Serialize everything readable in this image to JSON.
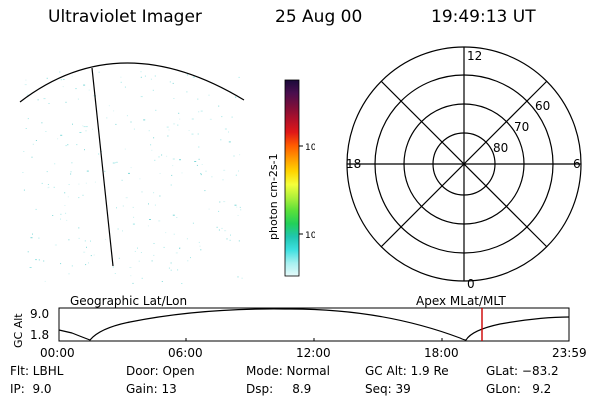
{
  "header": {
    "title": "Ultraviolet Imager",
    "date": "25 Aug 00",
    "time": "19:49:13 UT"
  },
  "colorbar": {
    "label": "photon cm-2s-1",
    "ticks": [
      "100",
      "10"
    ],
    "stops": [
      "#1a0a3a",
      "#4a0e4e",
      "#7a0e3a",
      "#b0102a",
      "#e01818",
      "#ff5a00",
      "#ff9900",
      "#ffd400",
      "#f4ff3a",
      "#aef03a",
      "#5ae03a",
      "#22d05a",
      "#20c6b0",
      "#3ee0e0",
      "#a6f0f0",
      "#e6fafa"
    ]
  },
  "polar": {
    "clock_labels": [
      "12",
      "18",
      "6",
      "0"
    ],
    "lat_labels": [
      "60",
      "70",
      "80"
    ]
  },
  "timeline": {
    "left_label": "Geographic Lat/Lon",
    "right_label": "Apex MLat/MLT",
    "ylabel": "GC Alt",
    "ymax": "9.0",
    "ymin": "1.8",
    "xticks": [
      "00:00",
      "06:00",
      "12:00",
      "18:00",
      "23:59"
    ],
    "marker_color": "#cc0000"
  },
  "status": {
    "filter": "Flt: LBHL",
    "ip": "IP:  9.0",
    "door": "Door: Open",
    "gain": "Gain: 13",
    "mode": "Mode: Normal",
    "dsp": "Dsp:     8.9",
    "gcalt": "GC Alt: 1.9 Re",
    "seq": "Seq: 39",
    "glat": "GLat: −83.2",
    "glon": "GLon:   9.2"
  }
}
